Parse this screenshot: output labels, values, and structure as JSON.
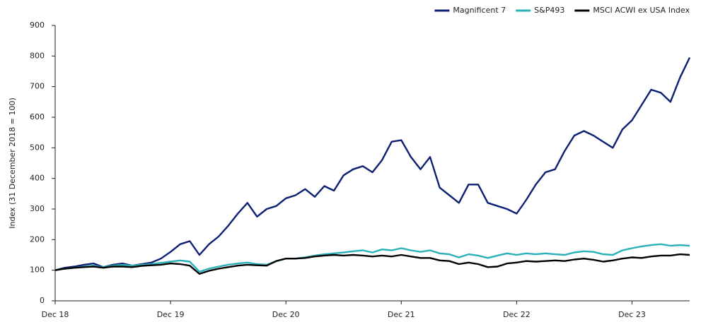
{
  "chart_data": {
    "type": "line",
    "y_label": "Index  (31 December 2018 = 100)",
    "categories": [
      "Dec 18",
      null,
      null,
      null,
      null,
      null,
      null,
      null,
      null,
      null,
      null,
      null,
      "Dec 19",
      null,
      null,
      null,
      null,
      null,
      null,
      null,
      null,
      null,
      null,
      null,
      "Dec 20",
      null,
      null,
      null,
      null,
      null,
      null,
      null,
      null,
      null,
      null,
      null,
      "Dec 21",
      null,
      null,
      null,
      null,
      null,
      null,
      null,
      null,
      null,
      null,
      null,
      "Dec 22",
      null,
      null,
      null,
      null,
      null,
      null,
      null,
      null,
      null,
      null,
      null,
      "Dec 23",
      null,
      null,
      null,
      null,
      null,
      null
    ],
    "series": [
      {
        "name": "Magnificent 7",
        "color": "#0d1f73",
        "values": [
          100,
          108,
          112,
          118,
          122,
          110,
          118,
          122,
          115,
          120,
          125,
          138,
          160,
          185,
          195,
          150,
          185,
          210,
          245,
          285,
          320,
          275,
          300,
          310,
          335,
          345,
          365,
          340,
          375,
          360,
          410,
          430,
          440,
          420,
          460,
          520,
          525,
          470,
          430,
          470,
          370,
          345,
          320,
          380,
          380,
          320,
          310,
          300,
          285,
          330,
          380,
          420,
          430,
          490,
          540,
          555,
          540,
          520,
          500,
          560,
          590,
          640,
          690,
          680,
          650,
          730,
          795
        ]
      },
      {
        "name": "S&P493",
        "color": "#2ab0b8",
        "values": [
          100,
          105,
          108,
          112,
          115,
          110,
          115,
          118,
          115,
          118,
          120,
          124,
          128,
          132,
          128,
          95,
          105,
          112,
          118,
          122,
          125,
          120,
          118,
          130,
          138,
          138,
          142,
          148,
          152,
          155,
          158,
          162,
          165,
          158,
          168,
          165,
          172,
          165,
          160,
          165,
          155,
          152,
          142,
          152,
          148,
          140,
          148,
          155,
          150,
          155,
          152,
          155,
          152,
          150,
          158,
          162,
          160,
          152,
          150,
          165,
          172,
          178,
          182,
          185,
          180,
          182,
          180
        ]
      },
      {
        "name": "MSCI ACWI ex USA Index",
        "color": "#000000",
        "values": [
          100,
          105,
          108,
          110,
          112,
          108,
          112,
          112,
          110,
          114,
          116,
          118,
          122,
          120,
          115,
          88,
          98,
          105,
          110,
          115,
          118,
          116,
          115,
          130,
          138,
          138,
          140,
          145,
          148,
          150,
          148,
          150,
          148,
          145,
          148,
          145,
          150,
          145,
          140,
          140,
          132,
          130,
          120,
          125,
          120,
          110,
          112,
          122,
          125,
          130,
          128,
          130,
          132,
          130,
          135,
          138,
          134,
          128,
          132,
          138,
          142,
          140,
          145,
          148,
          148,
          152,
          150
        ]
      }
    ],
    "ylim": [
      0,
      900
    ],
    "yticks": [
      0,
      100,
      200,
      300,
      400,
      500,
      600,
      700,
      800,
      900
    ],
    "legend": "top-right"
  }
}
